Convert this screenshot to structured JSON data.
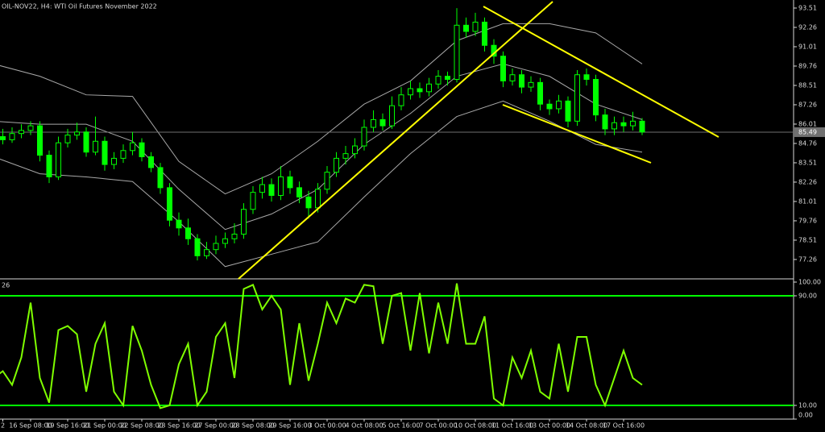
{
  "chart_data": [
    {
      "type": "candlestick",
      "title": "OIL-NOV22, H4:  WTI Oil Futures November 2022",
      "categories": [
        null,
        "2",
        null,
        null,
        "16 Sep 08:00",
        null,
        null,
        null,
        "19 Sep 16:00",
        null,
        null,
        null,
        "21 Sep 00:00",
        null,
        null,
        null,
        "22 Sep 08:00",
        null,
        null,
        null,
        "23 Sep 16:00",
        null,
        null,
        null,
        "27 Sep 00:00",
        null,
        null,
        null,
        "28 Sep 08:00",
        null,
        null,
        null,
        "29 Sep 16:00",
        null,
        null,
        null,
        "3 Oct 00:00",
        null,
        null,
        null,
        "4 Oct 08:00",
        null,
        null,
        null,
        "5 Oct 16:00",
        null,
        null,
        null,
        "7 Oct 00:00",
        null,
        null,
        null,
        "10 Oct 08:00",
        null,
        null,
        null,
        "11 Oct 16:00",
        null,
        null,
        null,
        "13 Oct 00:00",
        null,
        null,
        null,
        "14 Oct 08:00",
        null,
        null,
        null,
        "17 Oct 16:00",
        null,
        null
      ],
      "open": [
        85.0,
        85.2,
        85.0,
        85.4,
        85.6,
        85.9,
        84.0,
        82.6,
        84.8,
        85.3,
        85.5,
        84.2,
        84.9,
        83.4,
        83.8,
        84.3,
        84.8,
        83.9,
        83.2,
        81.9,
        79.8,
        79.3,
        78.6,
        77.5,
        77.9,
        78.3,
        78.6,
        78.9,
        80.5,
        81.6,
        82.1,
        81.4,
        82.6,
        81.9,
        81.3,
        80.6,
        81.8,
        82.9,
        83.8,
        84.1,
        84.6,
        85.8,
        86.3,
        85.9,
        87.2,
        87.9,
        88.3,
        88.1,
        88.6,
        89.1,
        88.9,
        92.4,
        92.0,
        92.6,
        91.1,
        90.4,
        88.8,
        89.2,
        88.4,
        88.7,
        87.3,
        87.0,
        87.5,
        86.2,
        89.2,
        88.9,
        86.6,
        85.7,
        86.1,
        85.9,
        86.2
      ],
      "high": [
        85.6,
        85.7,
        85.8,
        86.0,
        86.2,
        86.2,
        84.3,
        85.2,
        85.7,
        86.1,
        85.8,
        86.5,
        85.2,
        84.2,
        84.7,
        85.5,
        85.1,
        84.2,
        83.5,
        82.2,
        80.3,
        79.9,
        78.9,
        78.4,
        78.8,
        79.0,
        79.6,
        80.9,
        82.0,
        82.6,
        82.5,
        83.3,
        83.0,
        82.3,
        81.7,
        82.2,
        83.3,
        84.2,
        84.6,
        85.1,
        86.3,
        86.9,
        86.7,
        87.8,
        88.4,
        88.8,
        88.7,
        89.0,
        89.5,
        89.4,
        93.5,
        92.9,
        93.2,
        92.9,
        91.5,
        90.7,
        89.6,
        89.5,
        89.1,
        89.0,
        87.6,
        87.9,
        87.8,
        89.5,
        89.6,
        89.2,
        87.0,
        86.5,
        86.5,
        86.8,
        86.4
      ],
      "low": [
        84.6,
        84.7,
        84.8,
        85.1,
        85.3,
        83.6,
        82.2,
        82.4,
        84.5,
        85.0,
        83.9,
        84.0,
        83.0,
        83.1,
        83.5,
        84.0,
        83.6,
        82.9,
        81.5,
        79.4,
        78.8,
        78.2,
        77.2,
        77.3,
        77.6,
        78.0,
        78.3,
        78.6,
        80.2,
        81.2,
        81.0,
        81.1,
        81.5,
        80.9,
        79.9,
        80.3,
        81.5,
        82.6,
        83.4,
        83.8,
        84.3,
        85.5,
        85.6,
        85.7,
        86.9,
        87.6,
        87.7,
        87.8,
        88.3,
        88.5,
        88.7,
        91.6,
        91.7,
        90.7,
        89.9,
        88.4,
        88.5,
        88.0,
        88.1,
        86.9,
        86.6,
        86.7,
        85.8,
        85.9,
        88.5,
        86.2,
        85.3,
        85.3,
        85.5,
        85.6,
        85.3
      ],
      "close": [
        85.2,
        85.0,
        85.4,
        85.6,
        85.9,
        84.0,
        82.6,
        84.8,
        85.3,
        85.5,
        84.2,
        84.9,
        83.4,
        83.8,
        84.3,
        84.8,
        83.9,
        83.2,
        81.9,
        79.8,
        79.3,
        78.6,
        77.5,
        77.9,
        78.3,
        78.6,
        78.9,
        80.5,
        81.6,
        82.1,
        81.4,
        82.6,
        81.9,
        81.3,
        80.6,
        81.8,
        82.9,
        83.8,
        84.1,
        84.6,
        85.8,
        86.3,
        85.9,
        87.2,
        87.9,
        88.3,
        88.1,
        88.6,
        89.1,
        88.9,
        92.4,
        92.0,
        92.6,
        91.1,
        90.4,
        88.8,
        89.2,
        88.4,
        88.7,
        87.3,
        87.0,
        87.5,
        86.2,
        89.2,
        88.9,
        86.6,
        85.7,
        86.1,
        85.9,
        86.2,
        85.5
      ],
      "color": "#00ff00",
      "bands": {
        "color": "#a8a8a8",
        "x": [
          0,
          5,
          10,
          15,
          20,
          25,
          30,
          35,
          40,
          45,
          50,
          55,
          60,
          65,
          70
        ],
        "upper": [
          89.9,
          89.1,
          87.9,
          87.8,
          83.6,
          81.5,
          82.8,
          84.9,
          87.3,
          88.8,
          91.4,
          92.5,
          92.5,
          91.9,
          89.9
        ],
        "middle": [
          86.2,
          86.0,
          86.0,
          84.9,
          81.8,
          79.2,
          80.2,
          81.8,
          84.7,
          86.7,
          89.1,
          89.9,
          89.1,
          87.3,
          86.3
        ],
        "lower": [
          83.9,
          82.8,
          82.6,
          82.3,
          79.7,
          76.8,
          77.6,
          78.4,
          81.3,
          84.1,
          86.5,
          87.5,
          86.2,
          84.7,
          84.2
        ]
      },
      "last_price": 85.49,
      "ylim": [
        76.06,
        94.03
      ],
      "yticks": [
        93.51,
        92.26,
        91.01,
        89.76,
        88.51,
        87.26,
        86.01,
        84.76,
        83.51,
        82.26,
        81.01,
        79.76,
        78.51,
        77.26
      ]
    },
    {
      "type": "line",
      "title": "26",
      "color": "#7fff00",
      "level_color": "#00ff00",
      "levels": [
        90,
        10
      ],
      "values": [
        30,
        35,
        25,
        45,
        85,
        30,
        12,
        65,
        68,
        62,
        20,
        55,
        70,
        20,
        10,
        68,
        50,
        25,
        8,
        10,
        40,
        55,
        10,
        20,
        60,
        70,
        30,
        95,
        98,
        80,
        90,
        80,
        25,
        70,
        28,
        55,
        85,
        70,
        88,
        85,
        98,
        97,
        55,
        90,
        92,
        50,
        92,
        48,
        85,
        55,
        99,
        55,
        55,
        75,
        15,
        10,
        45,
        30,
        50,
        20,
        15,
        55,
        20,
        60,
        60,
        25,
        10,
        30,
        50,
        30,
        25
      ],
      "ylim": [
        0,
        100
      ],
      "yticks": [
        {
          "value": 100,
          "label": "100.00"
        },
        {
          "value": 90,
          "label": "90.00"
        },
        {
          "value": 10,
          "label": "10.00"
        },
        {
          "value": 0,
          "label": "0.00"
        }
      ]
    }
  ]
}
